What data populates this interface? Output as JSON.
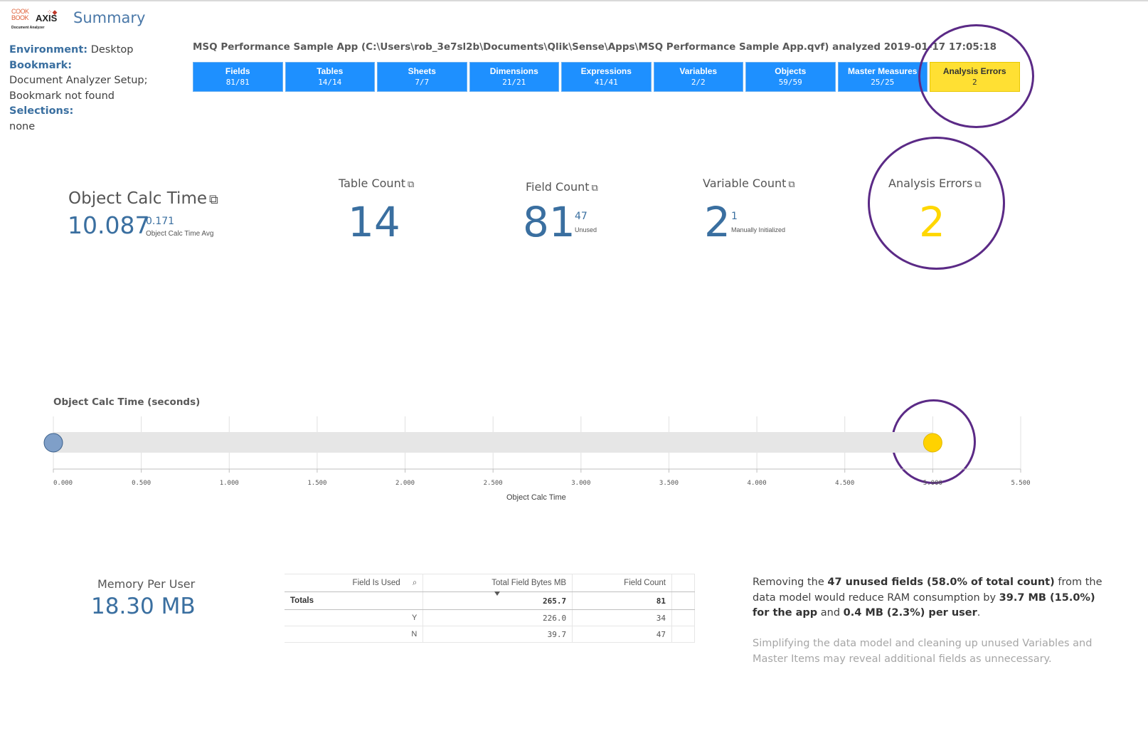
{
  "header": {
    "logo_cook": "COOK",
    "logo_book": "BOOK",
    "logo_axis": "AXIS",
    "logo_sub": "Document Analyzer",
    "title": "Summary"
  },
  "environment": {
    "env_label": "Environment:",
    "env_value": "Desktop",
    "bookmark_label": "Bookmark:",
    "bookmark_value_1": "Document Analyzer Setup;",
    "bookmark_value_2": "Bookmark not found",
    "selections_label": "Selections:",
    "selections_value": "none"
  },
  "app_header": "MSQ Performance Sample App (C:\\Users\\rob_3e7sl2b\\Documents\\Qlik\\Sense\\Apps\\MSQ Performance Sample App.qvf) analyzed 2019-01-17 17:05:18",
  "tiles": [
    {
      "label": "Fields",
      "value": "81/81"
    },
    {
      "label": "Tables",
      "value": "14/14"
    },
    {
      "label": "Sheets",
      "value": "7/7"
    },
    {
      "label": "Dimensions",
      "value": "21/21"
    },
    {
      "label": "Expressions",
      "value": "41/41"
    },
    {
      "label": "Variables",
      "value": "2/2"
    },
    {
      "label": "Objects",
      "value": "59/59"
    },
    {
      "label": "Master Measures",
      "value": "25/25"
    },
    {
      "label": "Analysis Errors",
      "value": "2"
    }
  ],
  "kpis": {
    "calc": {
      "title": "Object Calc Time",
      "value": "10.087",
      "sub_value": "0.171",
      "sub_label": "Object Calc Time Avg"
    },
    "tables": {
      "title": "Table Count",
      "value": "14"
    },
    "fields": {
      "title": "Field Count",
      "value": "81",
      "sub_value": "47",
      "sub_label": "Unused"
    },
    "variables": {
      "title": "Variable Count",
      "value": "2",
      "sub_value": "1",
      "sub_label": "Manually Initialized"
    },
    "errors": {
      "title": "Analysis Errors",
      "value": "2"
    }
  },
  "colors": {
    "tile_blue": "#1e90ff",
    "warn_yellow": "#ffe033",
    "kpi_blue": "#3a6fa0",
    "kpi_yellow": "#ffd700",
    "annotation_purple": "#5b2a86"
  },
  "chart_data": {
    "type": "scatter",
    "title": "Object Calc Time (seconds)",
    "xlabel": "Object Calc Time",
    "xlim": [
      0,
      5.5
    ],
    "ticks": [
      "0.000",
      "0.500",
      "1.000",
      "1.500",
      "2.000",
      "2.500",
      "3.000",
      "3.500",
      "4.000",
      "4.500",
      "5.000",
      "5.500"
    ],
    "points": [
      {
        "x": 0.0,
        "color": "#7f9fc8"
      },
      {
        "x": 5.0,
        "color": "#ffd200"
      }
    ]
  },
  "memory": {
    "title": "Memory Per User",
    "value": "18.30 MB"
  },
  "field_table": {
    "headers": [
      "Field Is Used",
      "Total Field Bytes MB",
      "Field Count"
    ],
    "totals": {
      "label": "Totals",
      "bytes": "265.7",
      "count": "81"
    },
    "rows": [
      {
        "used": "Y",
        "bytes": "226.0",
        "count": "34"
      },
      {
        "used": "N",
        "bytes": "39.7",
        "count": "47"
      }
    ]
  },
  "note": {
    "p1_a": "Removing the ",
    "p1_b": "47 unused fields (58.0% of total count)",
    "p1_c": " from the data model would reduce RAM consumption by ",
    "p1_d": "39.7 MB (15.0%) for the app",
    "p1_e": " and ",
    "p1_f": "0.4 MB (2.3%) per user",
    "p1_g": ".",
    "p2": "Simplifying the data model and cleaning up unused Variables and Master Items may reveal additional fields as unnecessary."
  }
}
